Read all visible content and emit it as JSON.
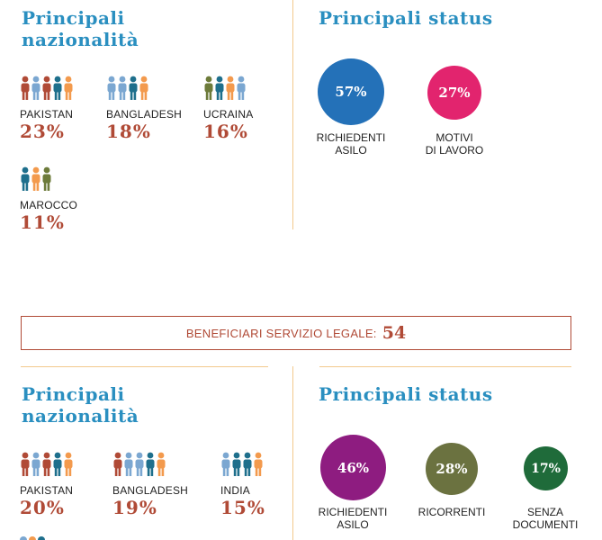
{
  "colors": {
    "title": "#2a8fc0",
    "pct": "#b04a36",
    "divider": "#f2c98c",
    "p_red": "#b04a36",
    "p_lblue": "#7ba7d1",
    "p_teal": "#1e6f8c",
    "p_orange": "#f39a4d",
    "p_olive": "#6d7b3a"
  },
  "section1": {
    "nat_title": "Principali nazionalità",
    "status_title": "Principali status",
    "nationalities": [
      {
        "country": "PAKISTAN",
        "pct": "23%",
        "icons": [
          "p_red",
          "p_lblue",
          "p_red",
          "p_teal",
          "p_orange"
        ]
      },
      {
        "country": "BANGLADESH",
        "pct": "18%",
        "icons": [
          "p_lblue",
          "p_lblue",
          "p_teal",
          "p_orange"
        ]
      },
      {
        "country": "UCRAINA",
        "pct": "16%",
        "icons": [
          "p_olive",
          "p_teal",
          "p_orange",
          "p_lblue"
        ]
      },
      {
        "country": "MAROCCO",
        "pct": "11%",
        "icons": [
          "p_teal",
          "p_orange",
          "p_olive"
        ]
      }
    ],
    "statuses": [
      {
        "value": "57%",
        "label_1": "RICHIEDENTI",
        "label_2": "ASILO",
        "color": "#2471b8"
      },
      {
        "value": "27%",
        "label_1": "MOTIVI",
        "label_2": "DI LAVORO",
        "color": "#e2246e"
      }
    ]
  },
  "banner": {
    "label": "BENEFICIARI SERVIZIO LEGALE:",
    "value": "54"
  },
  "section2": {
    "nat_title": "Principali nazionalità",
    "status_title": "Principali status",
    "nationalities": [
      {
        "country": "PAKISTAN",
        "pct": "20%",
        "icons": [
          "p_red",
          "p_lblue",
          "p_red",
          "p_teal",
          "p_orange"
        ]
      },
      {
        "country": "BANGLADESH",
        "pct": "19%",
        "icons": [
          "p_red",
          "p_lblue",
          "p_lblue",
          "p_teal",
          "p_orange"
        ]
      },
      {
        "country": "INDIA",
        "pct": "15%",
        "icons": [
          "p_lblue",
          "p_teal",
          "p_teal",
          "p_orange"
        ]
      }
    ],
    "statuses": [
      {
        "value": "46%",
        "label_1": "RICHIEDENTI",
        "label_2": "ASILO",
        "color": "#8e1c80"
      },
      {
        "value": "28%",
        "label_1": "RICORRENTI",
        "label_2": "",
        "color": "#6b7240"
      },
      {
        "value": "17%",
        "label_1": "SENZA",
        "label_2": "DOCUMENTI",
        "color": "#1f6b3a"
      }
    ]
  }
}
